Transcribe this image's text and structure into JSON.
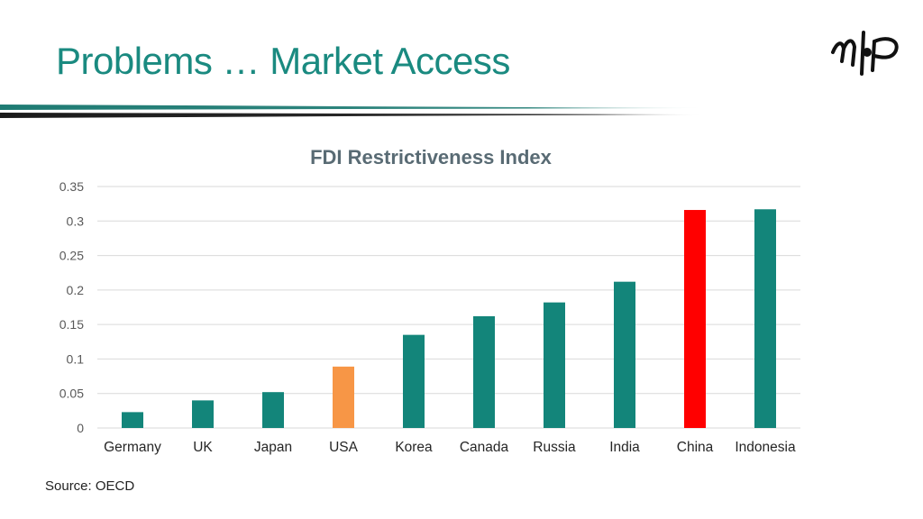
{
  "slide": {
    "title": "Problems … Market Access",
    "source": "Source: OECD",
    "logo_icon": "mp-calligraphy-logo-icon"
  },
  "colors": {
    "title": "#1a8a80",
    "bar_default": "#13857a",
    "bar_highlight_usa": "#f79646",
    "bar_highlight_china": "#ff0000",
    "rule_teal": "#1e7b73",
    "rule_dark": "#1a1a1a"
  },
  "chart_data": {
    "type": "bar",
    "title": "FDI Restrictiveness Index",
    "xlabel": "",
    "ylabel": "",
    "categories": [
      "Germany",
      "UK",
      "Japan",
      "USA",
      "Korea",
      "Canada",
      "Russia",
      "India",
      "China",
      "Indonesia"
    ],
    "values": [
      0.023,
      0.04,
      0.052,
      0.089,
      0.135,
      0.162,
      0.182,
      0.212,
      0.316,
      0.317
    ],
    "bar_colors": [
      "#13857a",
      "#13857a",
      "#13857a",
      "#f79646",
      "#13857a",
      "#13857a",
      "#13857a",
      "#13857a",
      "#ff0000",
      "#13857a"
    ],
    "ylim": [
      0,
      0.35
    ],
    "yticks": [
      "0",
      "0.05",
      "0.1",
      "0.15",
      "0.2",
      "0.25",
      "0.3",
      "0.35"
    ],
    "ytick_values": [
      0,
      0.05,
      0.1,
      0.15,
      0.2,
      0.25,
      0.3,
      0.35
    ],
    "grid": true,
    "legend": "none"
  }
}
